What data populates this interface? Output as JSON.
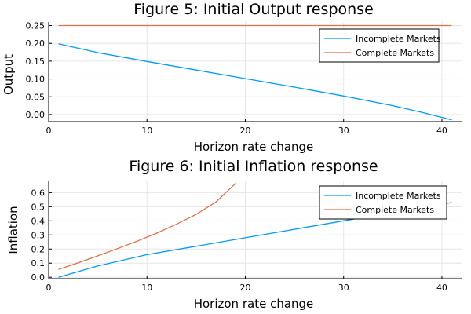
{
  "chart_data": [
    {
      "type": "line",
      "title": "Figure 5: Initial Output response",
      "xlabel": "Horizon rate change",
      "ylabel": "Output",
      "xlim": [
        0,
        42
      ],
      "ylim": [
        -0.02,
        0.26
      ],
      "xticks": [
        0,
        10,
        20,
        30,
        40
      ],
      "xtick_labels": [
        "0",
        "10",
        "20",
        "30",
        "40"
      ],
      "yticks": [
        0,
        0.05,
        0.1,
        0.15,
        0.2,
        0.25
      ],
      "ytick_labels": [
        "0.00",
        "0.05",
        "0.10",
        "0.15",
        "0.20",
        "0.25"
      ],
      "grid": true,
      "legend": "top-right",
      "series": [
        {
          "name": "Incomplete Markets",
          "color": "#009af9",
          "x": [
            1,
            5,
            10,
            15,
            20,
            25,
            30,
            35,
            38,
            41
          ],
          "y": [
            0.199,
            0.174,
            0.149,
            0.125,
            0.101,
            0.077,
            0.052,
            0.025,
            0.006,
            -0.015
          ]
        },
        {
          "name": "Complete Markets",
          "color": "#e26f46",
          "x": [
            1,
            41
          ],
          "y": [
            0.25,
            0.25
          ]
        }
      ]
    },
    {
      "type": "line",
      "title": "Figure 6: Initial Inflation response",
      "xlabel": "Horizon rate change",
      "ylabel": "Inflation",
      "xlim": [
        0,
        42
      ],
      "ylim": [
        -0.01,
        0.68
      ],
      "xticks": [
        0,
        10,
        20,
        30,
        40
      ],
      "xtick_labels": [
        "0",
        "10",
        "20",
        "30",
        "40"
      ],
      "yticks": [
        0,
        0.1,
        0.2,
        0.3,
        0.4,
        0.5,
        0.6
      ],
      "ytick_labels": [
        "0.0",
        "0.1",
        "0.2",
        "0.3",
        "0.4",
        "0.5",
        "0.6"
      ],
      "grid": true,
      "legend": "top-right",
      "series": [
        {
          "name": "Incomplete Markets",
          "color": "#009af9",
          "x": [
            1,
            3,
            5,
            10,
            15,
            20,
            25,
            30,
            35,
            41
          ],
          "y": [
            0.0,
            0.04,
            0.08,
            0.16,
            0.22,
            0.28,
            0.34,
            0.4,
            0.46,
            0.53
          ]
        },
        {
          "name": "Complete Markets",
          "color": "#e26f46",
          "x": [
            1,
            3,
            5,
            7,
            9,
            11,
            13,
            15,
            17,
            19
          ],
          "y": [
            0.055,
            0.103,
            0.152,
            0.203,
            0.256,
            0.313,
            0.376,
            0.446,
            0.533,
            0.665
          ]
        }
      ]
    }
  ]
}
